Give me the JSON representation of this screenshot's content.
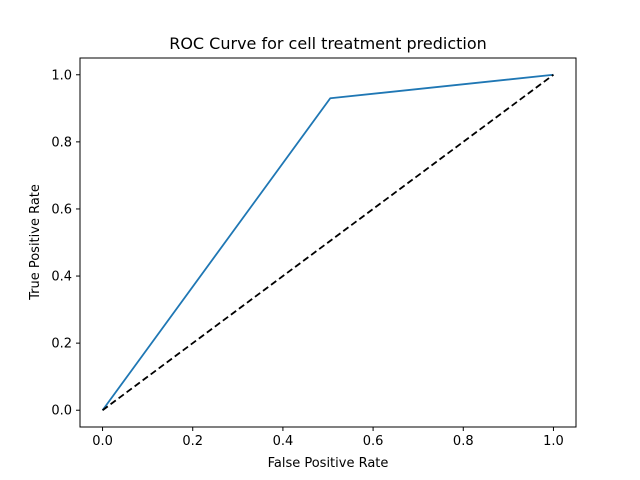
{
  "chart_data": {
    "type": "line",
    "title": "ROC Curve for cell treatment prediction",
    "xlabel": "False Positive Rate",
    "ylabel": "True Positive Rate",
    "xlim": [
      -0.05,
      1.05
    ],
    "ylim": [
      -0.05,
      1.05
    ],
    "xticks": [
      0.0,
      0.2,
      0.4,
      0.6,
      0.8,
      1.0
    ],
    "yticks": [
      0.0,
      0.2,
      0.4,
      0.6,
      0.8,
      1.0
    ],
    "xtick_labels": [
      "0.0",
      "0.2",
      "0.4",
      "0.6",
      "0.8",
      "1.0"
    ],
    "ytick_labels": [
      "0.0",
      "0.2",
      "0.4",
      "0.6",
      "0.8",
      "1.0"
    ],
    "grid": false,
    "series": [
      {
        "style": "solid",
        "color": "#1f77b4",
        "x": [
          0.0,
          0.505,
          1.0
        ],
        "y": [
          0.0,
          0.93,
          1.0
        ]
      },
      {
        "style": "dashed",
        "color": "#000000",
        "x": [
          0.0,
          1.0
        ],
        "y": [
          0.0,
          1.0
        ]
      }
    ]
  }
}
